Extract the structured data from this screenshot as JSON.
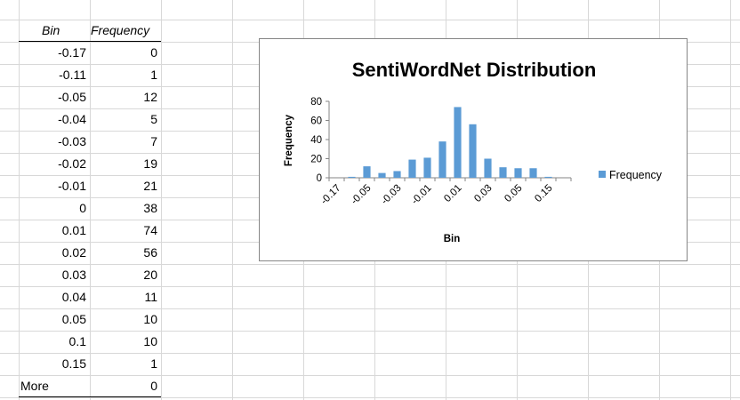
{
  "table": {
    "headers": {
      "bin": "Bin",
      "frequency": "Frequency"
    },
    "rows": [
      {
        "bin": "-0.17",
        "frequency": "0"
      },
      {
        "bin": "-0.11",
        "frequency": "1"
      },
      {
        "bin": "-0.05",
        "frequency": "12"
      },
      {
        "bin": "-0.04",
        "frequency": "5"
      },
      {
        "bin": "-0.03",
        "frequency": "7"
      },
      {
        "bin": "-0.02",
        "frequency": "19"
      },
      {
        "bin": "-0.01",
        "frequency": "21"
      },
      {
        "bin": "0",
        "frequency": "38"
      },
      {
        "bin": "0.01",
        "frequency": "74"
      },
      {
        "bin": "0.02",
        "frequency": "56"
      },
      {
        "bin": "0.03",
        "frequency": "20"
      },
      {
        "bin": "0.04",
        "frequency": "11"
      },
      {
        "bin": "0.05",
        "frequency": "10"
      },
      {
        "bin": "0.1",
        "frequency": "10"
      },
      {
        "bin": "0.15",
        "frequency": "1"
      },
      {
        "bin": "More",
        "frequency": "0"
      }
    ]
  },
  "chart_data": {
    "type": "bar",
    "title": "SentiWordNet Distribution",
    "xlabel": "Bin",
    "ylabel": "Frequency",
    "categories": [
      "-0.17",
      "-0.11",
      "-0.05",
      "-0.04",
      "-0.03",
      "-0.02",
      "-0.01",
      "0",
      "0.01",
      "0.02",
      "0.03",
      "0.04",
      "0.05",
      "0.1",
      "0.15",
      "More"
    ],
    "tick_labels_shown": [
      "-0.17",
      "-0.05",
      "-0.03",
      "-0.01",
      "0.01",
      "0.03",
      "0.05",
      "0.15"
    ],
    "series": [
      {
        "name": "Frequency",
        "values": [
          0,
          1,
          12,
          5,
          7,
          19,
          21,
          38,
          74,
          56,
          20,
          11,
          10,
          10,
          1,
          0
        ]
      }
    ],
    "yticks": [
      0,
      20,
      40,
      60,
      80
    ],
    "ylim": [
      0,
      80
    ],
    "legend_position": "right",
    "grid": false,
    "bar_color": "#5b9bd5"
  }
}
